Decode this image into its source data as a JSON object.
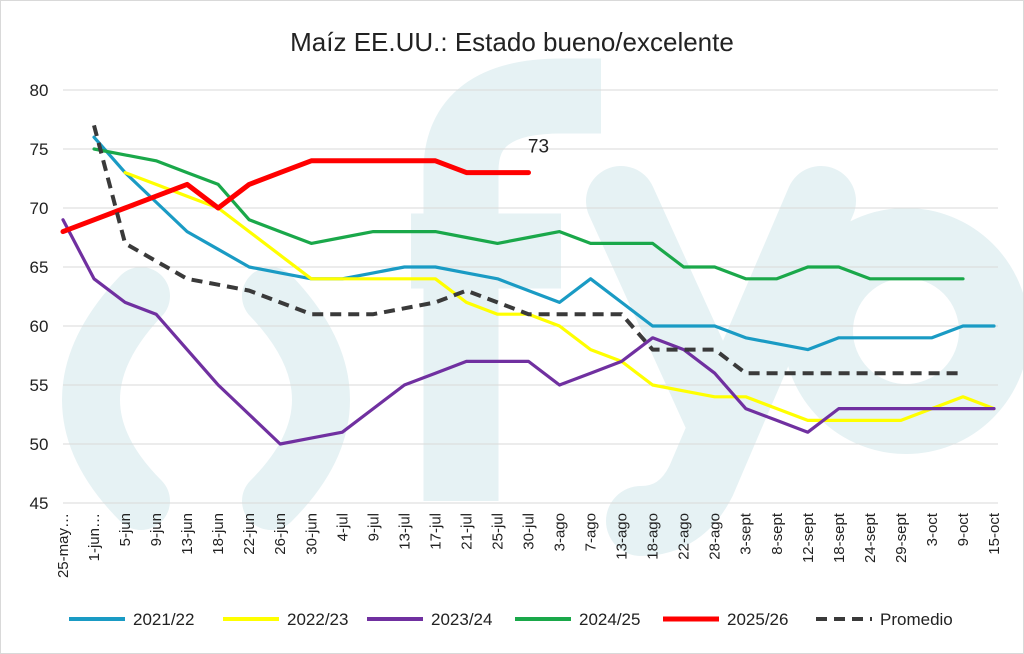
{
  "chart_data": {
    "type": "line",
    "title": "Maíz EE.UU.: Estado bueno/excelente",
    "xlabel": "",
    "ylabel": "",
    "ylim": [
      45,
      80
    ],
    "yticks": [
      45,
      50,
      55,
      60,
      65,
      70,
      75,
      80
    ],
    "grid": true,
    "legend_position": "bottom",
    "categories": [
      "25-may…",
      "1-jun…",
      "5-jun",
      "9-jun",
      "13-jun",
      "18-jun",
      "22-jun",
      "26-jun",
      "30-jun",
      "4-jul",
      "9-jul",
      "13-jul",
      "17-jul",
      "21-jul",
      "25-jul",
      "30-jul",
      "3-ago",
      "7-ago",
      "13-ago",
      "18-ago",
      "22-ago",
      "28-ago",
      "3-sept",
      "8-sept",
      "12-sept",
      "18-sept",
      "24-sept",
      "29-sept",
      "3-oct",
      "9-oct",
      "15-oct"
    ],
    "series": [
      {
        "name": "2021/22",
        "color": "#1a9bc4",
        "dash": false,
        "values": [
          null,
          76,
          73,
          70.5,
          68,
          66.5,
          65,
          64.5,
          64,
          64,
          64.5,
          65,
          65,
          64.5,
          64,
          63,
          62,
          64,
          62,
          60,
          60,
          60,
          59,
          58.5,
          58,
          59,
          59,
          59,
          59,
          60,
          60
        ]
      },
      {
        "name": "2022/23",
        "color": "#ffff00",
        "dash": false,
        "values": [
          null,
          null,
          73,
          72,
          71,
          70,
          68,
          66,
          64,
          64,
          64,
          64,
          64,
          62,
          61,
          61,
          60,
          58,
          57,
          55,
          54.5,
          54,
          54,
          53,
          52,
          52,
          52,
          52,
          53,
          54,
          53
        ]
      },
      {
        "name": "2023/24",
        "color": "#7030a0",
        "dash": false,
        "values": [
          69,
          64,
          62,
          61,
          58,
          55,
          52.5,
          50,
          50.5,
          51,
          53,
          55,
          56,
          57,
          57,
          57,
          55,
          56,
          57,
          59,
          58,
          56,
          53,
          52,
          51,
          53,
          53,
          53,
          53,
          53,
          53
        ]
      },
      {
        "name": "2024/25",
        "color": "#1aa84a",
        "dash": false,
        "values": [
          null,
          75,
          74.5,
          74,
          73,
          72,
          69,
          68,
          67,
          67.5,
          68,
          68,
          68,
          67.5,
          67,
          67.5,
          68,
          67,
          67,
          67,
          65,
          65,
          64,
          64,
          65,
          65,
          64,
          64,
          64,
          64,
          null
        ]
      },
      {
        "name": "2025/26",
        "color": "#ff0000",
        "dash": false,
        "values": [
          68,
          69,
          70,
          71,
          72,
          70,
          72,
          73,
          74,
          74,
          74,
          74,
          74,
          73,
          73,
          73,
          null,
          null,
          null,
          null,
          null,
          null,
          null,
          null,
          null,
          null,
          null,
          null,
          null,
          null,
          null
        ]
      },
      {
        "name": "Promedio",
        "color": "#3a3a3a",
        "dash": true,
        "values": [
          null,
          77,
          67,
          65.5,
          64,
          63.5,
          63,
          62,
          61,
          61,
          61,
          61.5,
          62,
          63,
          62,
          61,
          61,
          61,
          61,
          58,
          58,
          58,
          56,
          56,
          56,
          56,
          56,
          56,
          56,
          56,
          null
        ]
      }
    ],
    "annotations": [
      {
        "series": "2025/26",
        "text": "73"
      }
    ]
  },
  "watermark": {
    "color": "#e6f2f4"
  }
}
